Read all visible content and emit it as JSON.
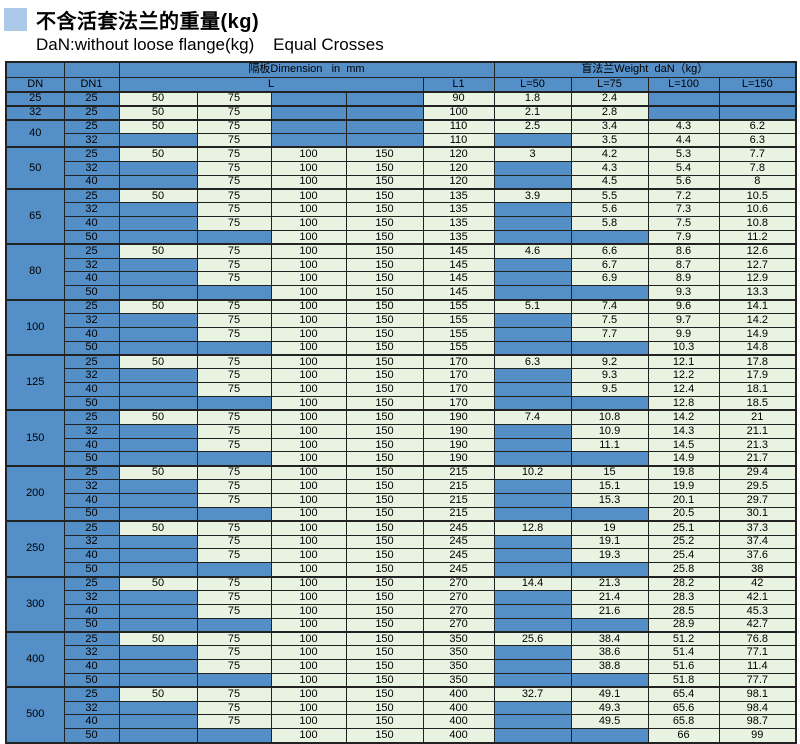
{
  "page": {
    "title": "不含活套法兰的重量(kg)",
    "subtitle": "DaN:without loose flange(kg)    Equal Crosses"
  },
  "colors": {
    "cell_blue": "#548fc7",
    "cell_green": "#e9f3e1",
    "border_dark": "#222222",
    "title_square": "#abc9e8"
  },
  "table": {
    "header": {
      "dimension_span": "隔板Dimension   in  mm",
      "weight_span": "盲法兰Weight  daN（kg）",
      "dn": "DN",
      "dn1": "DN1",
      "l": "L",
      "l1": "L1",
      "l50": "L=50",
      "l75": "L=75",
      "l100": "L=100",
      "l150": "L=150"
    },
    "groups": [
      {
        "dn": 25,
        "rows": [
          {
            "dn1": 25,
            "l": [
              50,
              75,
              null,
              null
            ],
            "l1": 90,
            "w": [
              1.8,
              2.4,
              null,
              null
            ]
          }
        ]
      },
      {
        "dn": 32,
        "rows": [
          {
            "dn1": 25,
            "l": [
              50,
              75,
              null,
              null
            ],
            "l1": 100,
            "w": [
              2.1,
              2.8,
              null,
              null
            ]
          }
        ]
      },
      {
        "dn": 40,
        "rows": [
          {
            "dn1": 25,
            "l": [
              50,
              75,
              null,
              null
            ],
            "l1": 110,
            "w": [
              2.5,
              3.4,
              4.3,
              6.2
            ]
          },
          {
            "dn1": 32,
            "l": [
              null,
              75,
              null,
              null
            ],
            "l1": 110,
            "w": [
              null,
              3.5,
              4.4,
              6.3
            ]
          }
        ]
      },
      {
        "dn": 50,
        "rows": [
          {
            "dn1": 25,
            "l": [
              50,
              75,
              100,
              150
            ],
            "l1": 120,
            "w": [
              3,
              4.2,
              5.3,
              7.7
            ]
          },
          {
            "dn1": 32,
            "l": [
              null,
              75,
              100,
              150
            ],
            "l1": 120,
            "w": [
              null,
              4.3,
              5.4,
              7.8
            ]
          },
          {
            "dn1": 40,
            "l": [
              null,
              75,
              100,
              150
            ],
            "l1": 120,
            "w": [
              null,
              4.5,
              5.6,
              8
            ]
          }
        ]
      },
      {
        "dn": 65,
        "rows": [
          {
            "dn1": 25,
            "l": [
              50,
              75,
              100,
              150
            ],
            "l1": 135,
            "w": [
              3.9,
              5.5,
              7.2,
              10.5
            ]
          },
          {
            "dn1": 32,
            "l": [
              null,
              75,
              100,
              150
            ],
            "l1": 135,
            "w": [
              null,
              5.6,
              7.3,
              10.6
            ]
          },
          {
            "dn1": 40,
            "l": [
              null,
              75,
              100,
              150
            ],
            "l1": 135,
            "w": [
              null,
              5.8,
              7.5,
              10.8
            ]
          },
          {
            "dn1": 50,
            "l": [
              null,
              null,
              100,
              150
            ],
            "l1": 135,
            "w": [
              null,
              null,
              7.9,
              11.2
            ]
          }
        ]
      },
      {
        "dn": 80,
        "rows": [
          {
            "dn1": 25,
            "l": [
              50,
              75,
              100,
              150
            ],
            "l1": 145,
            "w": [
              4.6,
              6.6,
              8.6,
              12.6
            ]
          },
          {
            "dn1": 32,
            "l": [
              null,
              75,
              100,
              150
            ],
            "l1": 145,
            "w": [
              null,
              6.7,
              8.7,
              12.7
            ]
          },
          {
            "dn1": 40,
            "l": [
              null,
              75,
              100,
              150
            ],
            "l1": 145,
            "w": [
              null,
              6.9,
              8.9,
              12.9
            ]
          },
          {
            "dn1": 50,
            "l": [
              null,
              null,
              100,
              150
            ],
            "l1": 145,
            "w": [
              null,
              null,
              9.3,
              13.3
            ]
          }
        ]
      },
      {
        "dn": 100,
        "rows": [
          {
            "dn1": 25,
            "l": [
              50,
              75,
              100,
              150
            ],
            "l1": 155,
            "w": [
              5.1,
              7.4,
              9.6,
              14.1
            ]
          },
          {
            "dn1": 32,
            "l": [
              null,
              75,
              100,
              150
            ],
            "l1": 155,
            "w": [
              null,
              7.5,
              9.7,
              14.2
            ]
          },
          {
            "dn1": 40,
            "l": [
              null,
              75,
              100,
              150
            ],
            "l1": 155,
            "w": [
              null,
              7.7,
              9.9,
              14.9
            ]
          },
          {
            "dn1": 50,
            "l": [
              null,
              null,
              100,
              150
            ],
            "l1": 155,
            "w": [
              null,
              null,
              10.3,
              14.8
            ]
          }
        ]
      },
      {
        "dn": 125,
        "rows": [
          {
            "dn1": 25,
            "l": [
              50,
              75,
              100,
              150
            ],
            "l1": 170,
            "w": [
              6.3,
              9.2,
              12.1,
              17.8
            ]
          },
          {
            "dn1": 32,
            "l": [
              null,
              75,
              100,
              150
            ],
            "l1": 170,
            "w": [
              null,
              9.3,
              12.2,
              17.9
            ]
          },
          {
            "dn1": 40,
            "l": [
              null,
              75,
              100,
              150
            ],
            "l1": 170,
            "w": [
              null,
              9.5,
              12.4,
              18.1
            ]
          },
          {
            "dn1": 50,
            "l": [
              null,
              null,
              100,
              150
            ],
            "l1": 170,
            "w": [
              null,
              null,
              12.8,
              18.5
            ]
          }
        ]
      },
      {
        "dn": 150,
        "rows": [
          {
            "dn1": 25,
            "l": [
              50,
              75,
              100,
              150
            ],
            "l1": 190,
            "w": [
              7.4,
              10.8,
              14.2,
              21
            ]
          },
          {
            "dn1": 32,
            "l": [
              null,
              75,
              100,
              150
            ],
            "l1": 190,
            "w": [
              null,
              10.9,
              14.3,
              21.1
            ]
          },
          {
            "dn1": 40,
            "l": [
              null,
              75,
              100,
              150
            ],
            "l1": 190,
            "w": [
              null,
              11.1,
              14.5,
              21.3
            ]
          },
          {
            "dn1": 50,
            "l": [
              null,
              null,
              100,
              150
            ],
            "l1": 190,
            "w": [
              null,
              null,
              14.9,
              21.7
            ]
          }
        ]
      },
      {
        "dn": 200,
        "rows": [
          {
            "dn1": 25,
            "l": [
              50,
              75,
              100,
              150
            ],
            "l1": 215,
            "w": [
              10.2,
              15,
              19.8,
              29.4
            ]
          },
          {
            "dn1": 32,
            "l": [
              null,
              75,
              100,
              150
            ],
            "l1": 215,
            "w": [
              null,
              15.1,
              19.9,
              29.5
            ]
          },
          {
            "dn1": 40,
            "l": [
              null,
              75,
              100,
              150
            ],
            "l1": 215,
            "w": [
              null,
              15.3,
              20.1,
              29.7
            ]
          },
          {
            "dn1": 50,
            "l": [
              null,
              null,
              100,
              150
            ],
            "l1": 215,
            "w": [
              null,
              null,
              20.5,
              30.1
            ]
          }
        ]
      },
      {
        "dn": 250,
        "rows": [
          {
            "dn1": 25,
            "l": [
              50,
              75,
              100,
              150
            ],
            "l1": 245,
            "w": [
              12.8,
              19,
              25.1,
              37.3
            ]
          },
          {
            "dn1": 32,
            "l": [
              null,
              75,
              100,
              150
            ],
            "l1": 245,
            "w": [
              null,
              19.1,
              25.2,
              37.4
            ]
          },
          {
            "dn1": 40,
            "l": [
              null,
              75,
              100,
              150
            ],
            "l1": 245,
            "w": [
              null,
              19.3,
              25.4,
              37.6
            ]
          },
          {
            "dn1": 50,
            "l": [
              null,
              null,
              100,
              150
            ],
            "l1": 245,
            "w": [
              null,
              null,
              25.8,
              38
            ]
          }
        ]
      },
      {
        "dn": 300,
        "rows": [
          {
            "dn1": 25,
            "l": [
              50,
              75,
              100,
              150
            ],
            "l1": 270,
            "w": [
              14.4,
              21.3,
              28.2,
              42
            ]
          },
          {
            "dn1": 32,
            "l": [
              null,
              75,
              100,
              150
            ],
            "l1": 270,
            "w": [
              null,
              21.4,
              28.3,
              42.1
            ]
          },
          {
            "dn1": 40,
            "l": [
              null,
              75,
              100,
              150
            ],
            "l1": 270,
            "w": [
              null,
              21.6,
              28.5,
              45.3
            ]
          },
          {
            "dn1": 50,
            "l": [
              null,
              null,
              100,
              150
            ],
            "l1": 270,
            "w": [
              null,
              null,
              28.9,
              42.7
            ]
          }
        ]
      },
      {
        "dn": 400,
        "rows": [
          {
            "dn1": 25,
            "l": [
              50,
              75,
              100,
              150
            ],
            "l1": 350,
            "w": [
              25.6,
              38.4,
              51.2,
              76.8
            ]
          },
          {
            "dn1": 32,
            "l": [
              null,
              75,
              100,
              150
            ],
            "l1": 350,
            "w": [
              null,
              38.6,
              51.4,
              77.1
            ]
          },
          {
            "dn1": 40,
            "l": [
              null,
              75,
              100,
              150
            ],
            "l1": 350,
            "w": [
              null,
              38.8,
              51.6,
              11.4
            ]
          },
          {
            "dn1": 50,
            "l": [
              null,
              null,
              100,
              150
            ],
            "l1": 350,
            "w": [
              null,
              null,
              51.8,
              77.7
            ]
          }
        ]
      },
      {
        "dn": 500,
        "rows": [
          {
            "dn1": 25,
            "l": [
              50,
              75,
              100,
              150
            ],
            "l1": 400,
            "w": [
              32.7,
              49.1,
              65.4,
              98.1
            ]
          },
          {
            "dn1": 32,
            "l": [
              null,
              75,
              100,
              150
            ],
            "l1": 400,
            "w": [
              null,
              49.3,
              65.6,
              98.4
            ]
          },
          {
            "dn1": 40,
            "l": [
              null,
              75,
              100,
              150
            ],
            "l1": 400,
            "w": [
              null,
              49.5,
              65.8,
              98.7
            ]
          },
          {
            "dn1": 50,
            "l": [
              null,
              null,
              100,
              150
            ],
            "l1": 400,
            "w": [
              null,
              null,
              66,
              99
            ]
          }
        ]
      }
    ]
  }
}
